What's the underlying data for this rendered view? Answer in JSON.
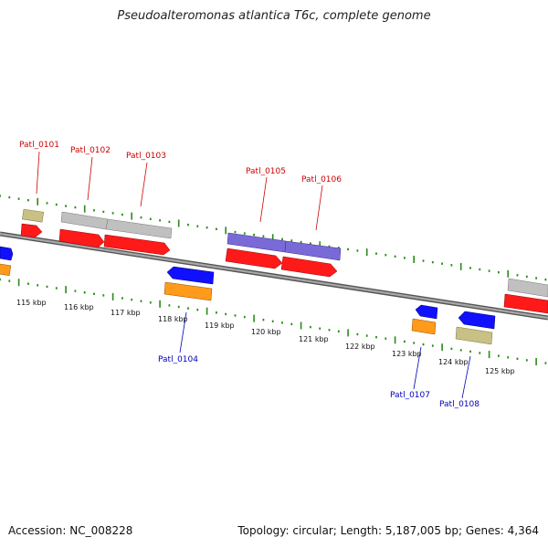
{
  "title": "Pseudoalteromonas atlantica T6c, complete genome",
  "footer": {
    "accession": "Accession: NC_008228",
    "summary": "Topology: circular; Length: 5,187,005 bp; Genes: 4,364"
  },
  "colors": {
    "backbone": "#8a8a8a",
    "ticks": "#2a8a1a",
    "cds_red": "#ff1a1a",
    "gene_grey": "#c0c0c0",
    "gene_purple": "#7a6ad8",
    "gene_olive": "#c8c084",
    "cds_blue": "#1010ff",
    "cds_orange": "#ff9a1a",
    "label_top": "#cc0000",
    "label_bottom": "#0000bb"
  },
  "kbp_labels": [
    "115 kbp",
    "116 kbp",
    "117 kbp",
    "118 kbp",
    "119 kbp",
    "120 kbp",
    "121 kbp",
    "122 kbp",
    "123 kbp",
    "124 kbp",
    "125 kbp"
  ],
  "genes_top": [
    {
      "label": "Patl_0101"
    },
    {
      "label": "Patl_0102"
    },
    {
      "label": "Patl_0103"
    },
    {
      "label": "Patl_0105"
    },
    {
      "label": "Patl_0106"
    }
  ],
  "genes_bottom": [
    {
      "label": "Patl_0104"
    },
    {
      "label": "Patl_0107"
    },
    {
      "label": "Patl_0108"
    }
  ]
}
